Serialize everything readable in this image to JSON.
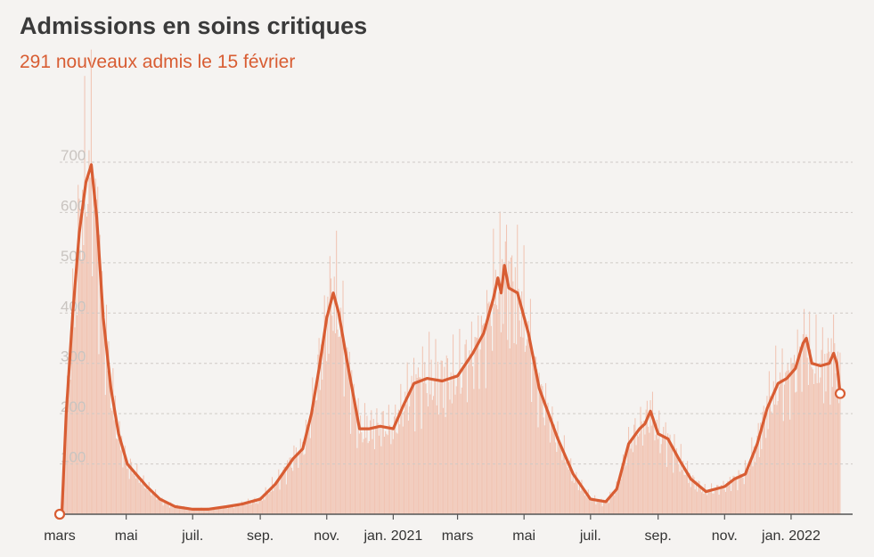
{
  "title": "Admissions en soins critiques",
  "subtitle": "291 nouveaux admis le 15 février",
  "colors": {
    "accent": "#d85d33",
    "bars": "#efb49e",
    "grid": "#cfcac6",
    "background": "#f5f3f1"
  },
  "chart_data": {
    "type": "bar",
    "title": "Admissions en soins critiques",
    "subtitle": "291 nouveaux admis le 15 février",
    "x_start": "2020-03-01",
    "x_end": "2022-02-15",
    "ylim": [
      0,
      700
    ],
    "yticks": [
      100,
      200,
      300,
      400,
      500,
      600,
      700
    ],
    "grid": true,
    "xticks": [
      {
        "date": "2020-03-01",
        "label": "mars"
      },
      {
        "date": "2020-05-01",
        "label": "mai"
      },
      {
        "date": "2020-07-01",
        "label": "juil."
      },
      {
        "date": "2020-09-01",
        "label": "sep."
      },
      {
        "date": "2020-11-01",
        "label": "nov."
      },
      {
        "date": "2021-01-01",
        "label": "jan. 2021"
      },
      {
        "date": "2021-03-01",
        "label": "mars"
      },
      {
        "date": "2021-05-01",
        "label": "mai"
      },
      {
        "date": "2021-07-01",
        "label": "juil."
      },
      {
        "date": "2021-09-01",
        "label": "sep."
      },
      {
        "date": "2021-11-01",
        "label": "nov."
      },
      {
        "date": "2022-01-01",
        "label": "jan. 2022"
      }
    ],
    "series": [
      {
        "type": "line",
        "points": [
          [
            "2020-03-01",
            0
          ],
          [
            "2020-03-03",
            0
          ],
          [
            "2020-03-07",
            200
          ],
          [
            "2020-03-13",
            400
          ],
          [
            "2020-03-19",
            560
          ],
          [
            "2020-03-25",
            660
          ],
          [
            "2020-03-30",
            695
          ],
          [
            "2020-04-04",
            590
          ],
          [
            "2020-04-10",
            390
          ],
          [
            "2020-04-17",
            250
          ],
          [
            "2020-04-24",
            160
          ],
          [
            "2020-05-02",
            100
          ],
          [
            "2020-05-10",
            80
          ],
          [
            "2020-05-20",
            55
          ],
          [
            "2020-06-01",
            30
          ],
          [
            "2020-06-15",
            15
          ],
          [
            "2020-07-01",
            10
          ],
          [
            "2020-07-15",
            10
          ],
          [
            "2020-08-01",
            15
          ],
          [
            "2020-08-15",
            20
          ],
          [
            "2020-09-01",
            30
          ],
          [
            "2020-09-15",
            60
          ],
          [
            "2020-10-01",
            110
          ],
          [
            "2020-10-10",
            130
          ],
          [
            "2020-10-18",
            200
          ],
          [
            "2020-10-25",
            290
          ],
          [
            "2020-11-01",
            390
          ],
          [
            "2020-11-07",
            440
          ],
          [
            "2020-11-12",
            400
          ],
          [
            "2020-11-20",
            300
          ],
          [
            "2020-12-01",
            170
          ],
          [
            "2020-12-10",
            170
          ],
          [
            "2020-12-20",
            175
          ],
          [
            "2021-01-01",
            170
          ],
          [
            "2021-01-10",
            215
          ],
          [
            "2021-01-20",
            260
          ],
          [
            "2021-02-01",
            270
          ],
          [
            "2021-02-15",
            265
          ],
          [
            "2021-03-01",
            275
          ],
          [
            "2021-03-15",
            320
          ],
          [
            "2021-03-25",
            360
          ],
          [
            "2021-04-03",
            430
          ],
          [
            "2021-04-07",
            470
          ],
          [
            "2021-04-10",
            440
          ],
          [
            "2021-04-13",
            495
          ],
          [
            "2021-04-17",
            450
          ],
          [
            "2021-04-25",
            440
          ],
          [
            "2021-05-05",
            360
          ],
          [
            "2021-05-15",
            250
          ],
          [
            "2021-06-01",
            150
          ],
          [
            "2021-06-15",
            80
          ],
          [
            "2021-07-01",
            30
          ],
          [
            "2021-07-15",
            25
          ],
          [
            "2021-07-25",
            50
          ],
          [
            "2021-08-05",
            140
          ],
          [
            "2021-08-15",
            170
          ],
          [
            "2021-08-20",
            180
          ],
          [
            "2021-08-25",
            205
          ],
          [
            "2021-09-01",
            160
          ],
          [
            "2021-09-10",
            150
          ],
          [
            "2021-09-20",
            110
          ],
          [
            "2021-10-01",
            70
          ],
          [
            "2021-10-15",
            45
          ],
          [
            "2021-11-01",
            55
          ],
          [
            "2021-11-10",
            70
          ],
          [
            "2021-11-20",
            80
          ],
          [
            "2021-12-01",
            140
          ],
          [
            "2021-12-10",
            210
          ],
          [
            "2021-12-20",
            260
          ],
          [
            "2021-12-28",
            270
          ],
          [
            "2022-01-05",
            290
          ],
          [
            "2022-01-12",
            340
          ],
          [
            "2022-01-15",
            350
          ],
          [
            "2022-01-20",
            300
          ],
          [
            "2022-01-28",
            295
          ],
          [
            "2022-02-05",
            300
          ],
          [
            "2022-02-09",
            320
          ],
          [
            "2022-02-12",
            300
          ],
          [
            "2022-02-15",
            240
          ]
        ]
      }
    ]
  }
}
